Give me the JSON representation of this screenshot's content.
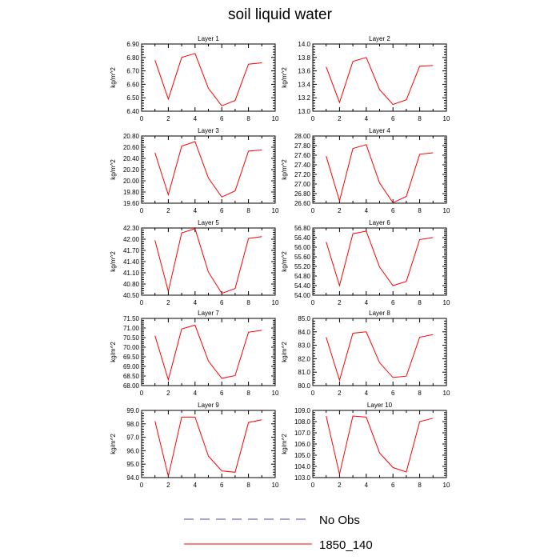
{
  "title": "soil liquid water",
  "legend": {
    "entries": [
      {
        "label": "No Obs",
        "color": "#4a4aa0",
        "style": "dashed"
      },
      {
        "label": "1850_140",
        "color": "#ff0000",
        "style": "solid"
      }
    ]
  },
  "chart_data": [
    {
      "type": "line",
      "title": "Layer 1",
      "ylabel": "kg/m^2",
      "xlim": [
        0,
        10
      ],
      "xticks": [
        0,
        2,
        4,
        6,
        8,
        10
      ],
      "ylim": [
        6.4,
        6.9
      ],
      "yticks": [
        "6.40",
        "6.50",
        "6.60",
        "6.70",
        "6.80",
        "6.90"
      ],
      "series": [
        {
          "name": "1850_140",
          "color": "#ff0000",
          "x": [
            1,
            2,
            3,
            4,
            5,
            6,
            7,
            8,
            9
          ],
          "values": [
            6.78,
            6.49,
            6.8,
            6.83,
            6.57,
            6.44,
            6.48,
            6.75,
            6.76
          ]
        }
      ]
    },
    {
      "type": "line",
      "title": "Layer 2",
      "ylabel": "kg/m^2",
      "xlim": [
        0,
        10
      ],
      "xticks": [
        0,
        2,
        4,
        6,
        8,
        10
      ],
      "ylim": [
        13.0,
        14.0
      ],
      "yticks": [
        "13.0",
        "13.2",
        "13.4",
        "13.6",
        "13.8",
        "14.0"
      ],
      "series": [
        {
          "name": "1850_140",
          "color": "#ff0000",
          "x": [
            1,
            2,
            3,
            4,
            5,
            6,
            7,
            8,
            9
          ],
          "values": [
            13.66,
            13.13,
            13.74,
            13.8,
            13.32,
            13.1,
            13.17,
            13.67,
            13.68
          ]
        }
      ]
    },
    {
      "type": "line",
      "title": "Layer 3",
      "ylabel": "kg/m^2",
      "xlim": [
        0,
        10
      ],
      "xticks": [
        0,
        2,
        4,
        6,
        8,
        10
      ],
      "ylim": [
        19.6,
        20.8
      ],
      "yticks": [
        "19.60",
        "19.80",
        "20.00",
        "20.20",
        "20.40",
        "20.60",
        "20.80"
      ],
      "series": [
        {
          "name": "1850_140",
          "color": "#ff0000",
          "x": [
            1,
            2,
            3,
            4,
            5,
            6,
            7,
            8,
            9
          ],
          "values": [
            20.5,
            19.75,
            20.62,
            20.7,
            20.05,
            19.71,
            19.82,
            20.53,
            20.55
          ]
        }
      ]
    },
    {
      "type": "line",
      "title": "Layer 4",
      "ylabel": "kg/m^2",
      "xlim": [
        0,
        10
      ],
      "xticks": [
        0,
        2,
        4,
        6,
        8,
        10
      ],
      "ylim": [
        26.6,
        28.0
      ],
      "yticks": [
        "26.60",
        "26.80",
        "27.00",
        "27.20",
        "27.40",
        "27.60",
        "27.80",
        "28.00"
      ],
      "series": [
        {
          "name": "1850_140",
          "color": "#ff0000",
          "x": [
            1,
            2,
            3,
            4,
            5,
            6,
            7,
            8,
            9
          ],
          "values": [
            27.58,
            26.65,
            27.74,
            27.82,
            27.02,
            26.61,
            26.74,
            27.62,
            27.65
          ]
        }
      ]
    },
    {
      "type": "line",
      "title": "Layer 5",
      "ylabel": "kg/m^2",
      "xlim": [
        0,
        10
      ],
      "xticks": [
        0,
        2,
        4,
        6,
        8,
        10
      ],
      "ylim": [
        40.5,
        42.3
      ],
      "yticks": [
        "40.50",
        "40.80",
        "41.10",
        "41.40",
        "41.70",
        "42.00",
        "42.30"
      ],
      "series": [
        {
          "name": "1850_140",
          "color": "#ff0000",
          "x": [
            1,
            2,
            3,
            4,
            5,
            6,
            7,
            8,
            9
          ],
          "values": [
            41.97,
            40.6,
            42.17,
            42.28,
            41.12,
            40.55,
            40.68,
            42.02,
            42.07
          ]
        }
      ]
    },
    {
      "type": "line",
      "title": "Layer 6",
      "ylabel": "kg/m^2",
      "xlim": [
        0,
        10
      ],
      "xticks": [
        0,
        2,
        4,
        6,
        8,
        10
      ],
      "ylim": [
        54.0,
        56.8
      ],
      "yticks": [
        "54.00",
        "54.40",
        "54.80",
        "55.20",
        "55.60",
        "56.00",
        "56.40",
        "56.80"
      ],
      "series": [
        {
          "name": "1850_140",
          "color": "#ff0000",
          "x": [
            1,
            2,
            3,
            4,
            5,
            6,
            7,
            8,
            9
          ],
          "values": [
            56.22,
            54.4,
            56.56,
            56.67,
            55.17,
            54.4,
            54.57,
            56.32,
            56.4
          ]
        }
      ]
    },
    {
      "type": "line",
      "title": "Layer 7",
      "ylabel": "kg/m^2",
      "xlim": [
        0,
        10
      ],
      "xticks": [
        0,
        2,
        4,
        6,
        8,
        10
      ],
      "ylim": [
        68.0,
        71.5
      ],
      "yticks": [
        "68.00",
        "68.50",
        "69.00",
        "69.50",
        "70.00",
        "70.50",
        "71.00",
        "71.50"
      ],
      "series": [
        {
          "name": "1850_140",
          "color": "#ff0000",
          "x": [
            1,
            2,
            3,
            4,
            5,
            6,
            7,
            8,
            9
          ],
          "values": [
            70.6,
            68.3,
            70.95,
            71.15,
            69.28,
            68.38,
            68.52,
            70.78,
            70.88
          ]
        }
      ]
    },
    {
      "type": "line",
      "title": "Layer 8",
      "ylabel": "kg/m^2",
      "xlim": [
        0,
        10
      ],
      "xticks": [
        0,
        2,
        4,
        6,
        8,
        10
      ],
      "ylim": [
        80.0,
        85.0
      ],
      "yticks": [
        "80.0",
        "81.0",
        "82.0",
        "83.0",
        "84.0",
        "85.0"
      ],
      "series": [
        {
          "name": "1850_140",
          "color": "#ff0000",
          "x": [
            1,
            2,
            3,
            4,
            5,
            6,
            7,
            8,
            9
          ],
          "values": [
            83.6,
            80.4,
            83.9,
            84.0,
            81.7,
            80.6,
            80.7,
            83.6,
            83.8
          ]
        }
      ]
    },
    {
      "type": "line",
      "title": "Layer 9",
      "ylabel": "kg/m^2",
      "xlim": [
        0,
        10
      ],
      "xticks": [
        0,
        2,
        4,
        6,
        8,
        10
      ],
      "ylim": [
        94.0,
        99.0
      ],
      "yticks": [
        "94.0",
        "95.0",
        "96.0",
        "97.0",
        "98.0",
        "99.0"
      ],
      "series": [
        {
          "name": "1850_140",
          "color": "#ff0000",
          "x": [
            1,
            2,
            3,
            4,
            5,
            6,
            7,
            8,
            9
          ],
          "values": [
            98.2,
            94.1,
            98.5,
            98.5,
            95.6,
            94.5,
            94.4,
            98.1,
            98.3
          ]
        }
      ]
    },
    {
      "type": "line",
      "title": "Layer 10",
      "ylabel": "kg/m^2",
      "xlim": [
        0,
        10
      ],
      "xticks": [
        0,
        2,
        4,
        6,
        8,
        10
      ],
      "ylim": [
        103.0,
        109.0
      ],
      "yticks": [
        "103.0",
        "104.0",
        "105.0",
        "106.0",
        "107.0",
        "108.0",
        "109.0"
      ],
      "series": [
        {
          "name": "1850_140",
          "color": "#ff0000",
          "x": [
            1,
            2,
            3,
            4,
            5,
            6,
            7,
            8,
            9
          ],
          "values": [
            108.5,
            103.3,
            108.5,
            108.4,
            105.2,
            103.9,
            103.5,
            108.0,
            108.3
          ]
        }
      ]
    }
  ]
}
